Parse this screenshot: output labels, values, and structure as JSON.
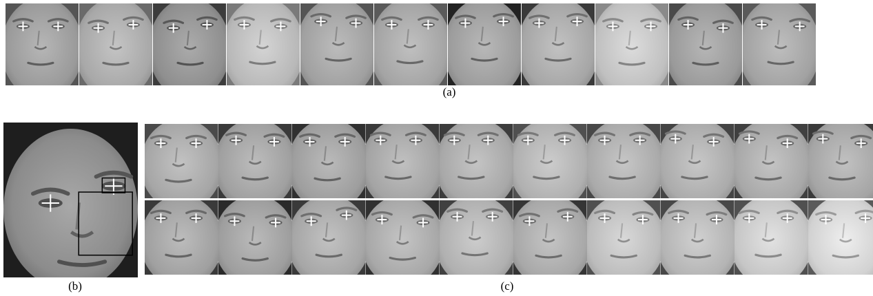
{
  "captions": {
    "a": "(a)",
    "b": "(b)",
    "c": "(c)"
  },
  "panel_a": {
    "faces": [
      {
        "tone": "#9a9a9a",
        "hair": "#555555",
        "eye_l": [
          0.24,
          0.28
        ],
        "eye_r": [
          0.72,
          0.28
        ]
      },
      {
        "tone": "#a8a8a8",
        "hair": "#6a6a6a",
        "eye_l": [
          0.26,
          0.3
        ],
        "eye_r": [
          0.74,
          0.26
        ]
      },
      {
        "tone": "#8f8f8f",
        "hair": "#3c3c3c",
        "eye_l": [
          0.28,
          0.3
        ],
        "eye_r": [
          0.74,
          0.26
        ]
      },
      {
        "tone": "#b8b8b8",
        "hair": "#7a7a7a",
        "eye_l": [
          0.24,
          0.26
        ],
        "eye_r": [
          0.74,
          0.28
        ]
      },
      {
        "tone": "#a0a0a0",
        "hair": "#555555",
        "eye_l": [
          0.28,
          0.22
        ],
        "eye_r": [
          0.76,
          0.24
        ]
      },
      {
        "tone": "#a4a4a4",
        "hair": "#5a5a5a",
        "eye_l": [
          0.24,
          0.26
        ],
        "eye_r": [
          0.74,
          0.26
        ]
      },
      {
        "tone": "#9c9c9c",
        "hair": "#222222",
        "eye_l": [
          0.24,
          0.24
        ],
        "eye_r": [
          0.76,
          0.22
        ]
      },
      {
        "tone": "#a6a6a6",
        "hair": "#3a3a3a",
        "eye_l": [
          0.24,
          0.24
        ],
        "eye_r": [
          0.76,
          0.22
        ]
      },
      {
        "tone": "#c0c0c0",
        "hair": "#8a8a8a",
        "eye_l": [
          0.24,
          0.28
        ],
        "eye_r": [
          0.76,
          0.28
        ]
      },
      {
        "tone": "#9a9a9a",
        "hair": "#4a4a4a",
        "eye_l": [
          0.26,
          0.26
        ],
        "eye_r": [
          0.74,
          0.3
        ]
      },
      {
        "tone": "#a2a2a2",
        "hair": "#5a5a5a",
        "eye_l": [
          0.26,
          0.26
        ],
        "eye_r": [
          0.78,
          0.28
        ]
      }
    ]
  },
  "panel_b": {
    "face": {
      "tone": "#8c8c8c",
      "hair": "#1e1e1e",
      "eye_l": [
        0.35,
        0.52
      ],
      "eye_r": [
        0.82,
        0.41
      ]
    }
  },
  "panel_c": {
    "row1": [
      {
        "tone": "#a6a6a6",
        "hair": "#4a4a4a",
        "eye_l": [
          0.22,
          0.26
        ],
        "eye_r": [
          0.7,
          0.26
        ]
      },
      {
        "tone": "#a0a0a0",
        "hair": "#3a3a3a",
        "eye_l": [
          0.24,
          0.22
        ],
        "eye_r": [
          0.76,
          0.24
        ]
      },
      {
        "tone": "#9e9e9e",
        "hair": "#303030",
        "eye_l": [
          0.24,
          0.24
        ],
        "eye_r": [
          0.72,
          0.24
        ]
      },
      {
        "tone": "#a4a4a4",
        "hair": "#3a3a3a",
        "eye_l": [
          0.2,
          0.22
        ],
        "eye_r": [
          0.68,
          0.22
        ]
      },
      {
        "tone": "#a8a8a8",
        "hair": "#3c3c3c",
        "eye_l": [
          0.2,
          0.22
        ],
        "eye_r": [
          0.66,
          0.22
        ]
      },
      {
        "tone": "#b0b0b0",
        "hair": "#505050",
        "eye_l": [
          0.2,
          0.22
        ],
        "eye_r": [
          0.7,
          0.22
        ]
      },
      {
        "tone": "#aaaaaa",
        "hair": "#484848",
        "eye_l": [
          0.24,
          0.22
        ],
        "eye_r": [
          0.72,
          0.22
        ]
      },
      {
        "tone": "#ababab",
        "hair": "#444444",
        "eye_l": [
          0.2,
          0.2
        ],
        "eye_r": [
          0.72,
          0.24
        ]
      },
      {
        "tone": "#a8a8a8",
        "hair": "#404040",
        "eye_l": [
          0.2,
          0.2
        ],
        "eye_r": [
          0.72,
          0.26
        ]
      },
      {
        "tone": "#a5a5a5",
        "hair": "#3a3a3a",
        "eye_l": [
          0.2,
          0.2
        ],
        "eye_r": [
          0.72,
          0.26
        ]
      }
    ],
    "row2": [
      {
        "tone": "#a0a0a0",
        "hair": "#3a3a3a",
        "eye_l": [
          0.22,
          0.24
        ],
        "eye_r": [
          0.7,
          0.24
        ]
      },
      {
        "tone": "#9e9e9e",
        "hair": "#2a2a2a",
        "eye_l": [
          0.22,
          0.28
        ],
        "eye_r": [
          0.78,
          0.3
        ]
      },
      {
        "tone": "#a6a6a6",
        "hair": "#3a3a3a",
        "eye_l": [
          0.26,
          0.28
        ],
        "eye_r": [
          0.74,
          0.2
        ]
      },
      {
        "tone": "#a8a8a8",
        "hair": "#303030",
        "eye_l": [
          0.22,
          0.26
        ],
        "eye_r": [
          0.78,
          0.3
        ]
      },
      {
        "tone": "#b0b0b0",
        "hair": "#404040",
        "eye_l": [
          0.24,
          0.22
        ],
        "eye_r": [
          0.72,
          0.22
        ]
      },
      {
        "tone": "#a8a8a8",
        "hair": "#353535",
        "eye_l": [
          0.22,
          0.28
        ],
        "eye_r": [
          0.74,
          0.22
        ]
      },
      {
        "tone": "#bcbcbc",
        "hair": "#505050",
        "eye_l": [
          0.24,
          0.24
        ],
        "eye_r": [
          0.76,
          0.26
        ]
      },
      {
        "tone": "#b4b4b4",
        "hair": "#484848",
        "eye_l": [
          0.24,
          0.24
        ],
        "eye_r": [
          0.76,
          0.26
        ]
      },
      {
        "tone": "#c6c6c6",
        "hair": "#505050",
        "eye_l": [
          0.2,
          0.24
        ],
        "eye_r": [
          0.72,
          0.24
        ]
      },
      {
        "tone": "#d2d2d2",
        "hair": "#5a5a5a",
        "eye_l": [
          0.24,
          0.26
        ],
        "eye_r": [
          0.78,
          0.24
        ]
      }
    ]
  }
}
